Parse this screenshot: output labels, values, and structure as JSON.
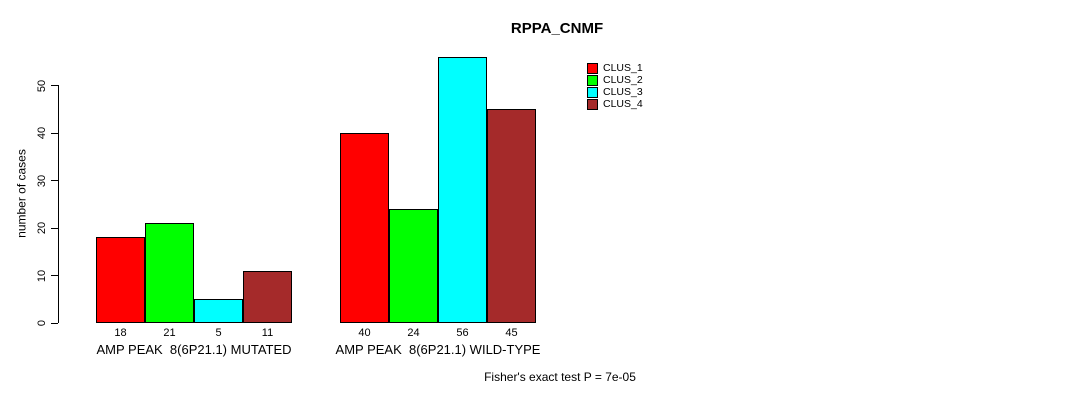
{
  "title": "RPPA_CNMF",
  "footer": "Fisher's exact test P = 7e-05",
  "y_axis": {
    "label": "number of cases",
    "ticks": [
      0,
      10,
      20,
      30,
      40,
      50
    ]
  },
  "legend": {
    "items": [
      {
        "label": "CLUS_1",
        "color": "#FF0000"
      },
      {
        "label": "CLUS_2",
        "color": "#00FF00"
      },
      {
        "label": "CLUS_3",
        "color": "#00FFFF"
      },
      {
        "label": "CLUS_4",
        "color": "#A52A2A"
      }
    ]
  },
  "chart_data": {
    "type": "bar",
    "title": "RPPA_CNMF",
    "xlabel": "",
    "ylabel": "number of cases",
    "ylim": [
      0,
      56
    ],
    "yticks": [
      0,
      10,
      20,
      30,
      40,
      50
    ],
    "grid": false,
    "legend_position": "top-right",
    "bar_value_labels_shown": true,
    "categories": [
      "AMP PEAK  8(6P21.1) MUTATED",
      "AMP PEAK  8(6P21.1) WILD-TYPE"
    ],
    "series": [
      {
        "name": "CLUS_1",
        "color": "#FF0000",
        "values": [
          18,
          40
        ]
      },
      {
        "name": "CLUS_2",
        "color": "#00FF00",
        "values": [
          21,
          24
        ]
      },
      {
        "name": "CLUS_3",
        "color": "#00FFFF",
        "values": [
          5,
          56
        ]
      },
      {
        "name": "CLUS_4",
        "color": "#A52A2A",
        "values": [
          11,
          45
        ]
      }
    ],
    "annotation": "Fisher's exact test P = 7e-05"
  }
}
